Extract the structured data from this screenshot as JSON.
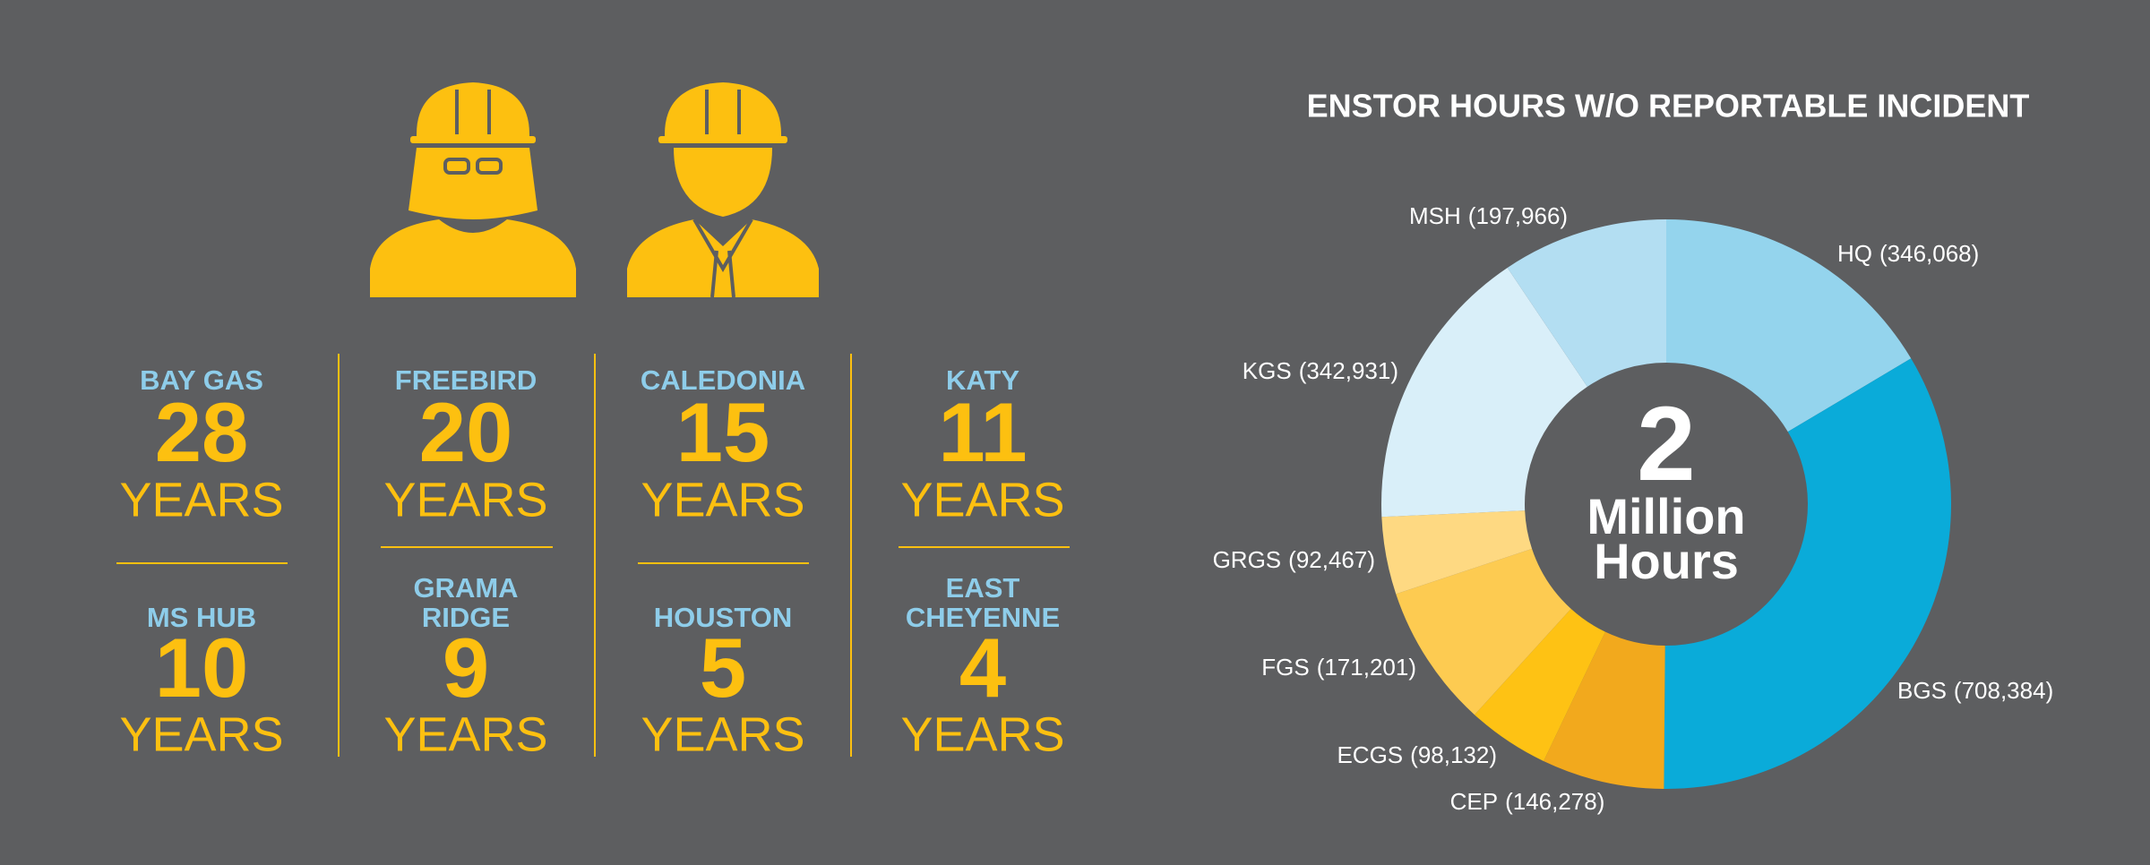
{
  "sites": [
    {
      "name": [
        "BAY GAS"
      ],
      "years": 28,
      "unit": "YEARS"
    },
    {
      "name": [
        "FREEBIRD"
      ],
      "years": 20,
      "unit": "YEARS"
    },
    {
      "name": [
        "CALEDONIA"
      ],
      "years": 15,
      "unit": "YEARS"
    },
    {
      "name": [
        "KATY"
      ],
      "years": 11,
      "unit": "YEARS"
    },
    {
      "name": [
        "MS HUB"
      ],
      "years": 10,
      "unit": "YEARS"
    },
    {
      "name": [
        "GRAMA",
        "RIDGE"
      ],
      "years": 9,
      "unit": "YEARS"
    },
    {
      "name": [
        "HOUSTON"
      ],
      "years": 5,
      "unit": "YEARS"
    },
    {
      "name": [
        "EAST",
        "CHEYENNE"
      ],
      "years": 4,
      "unit": "YEARS"
    }
  ],
  "chart_data": {
    "type": "donut",
    "title": "ENSTOR HOURS W/O REPORTABLE INCIDENT",
    "categories": [
      "HQ",
      "BGS",
      "CEP",
      "ECGS",
      "FGS",
      "GRGS",
      "KGS",
      "MSH"
    ],
    "values": [
      346068,
      708384,
      146278,
      98132,
      171201,
      92467,
      342931,
      197966
    ],
    "value_labels": [
      "(346,068)",
      "(708,384)",
      "(146,278)",
      "(98,132)",
      "(171,201)",
      "(92,467)",
      "(342,931)",
      "(197,966)"
    ],
    "colors": [
      "#94d4ed",
      "#0aabd9",
      "#f2a91d",
      "#fec214",
      "#fdcb51",
      "#fed982",
      "#d9eff9",
      "#b3def2"
    ],
    "center_value": 2,
    "center_unit": [
      "Million",
      "Hours"
    ]
  }
}
